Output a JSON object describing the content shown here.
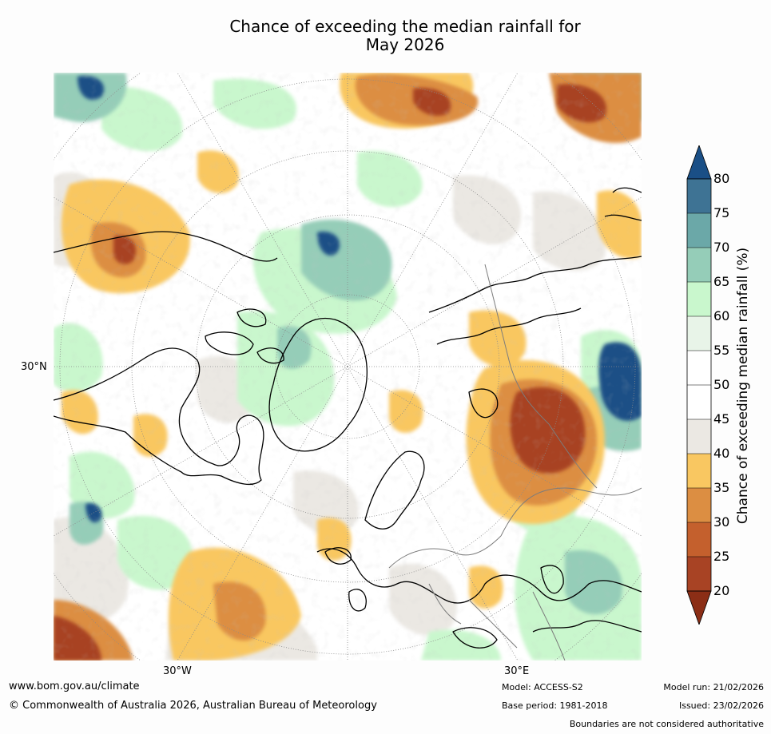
{
  "title_line1": "Chance of exceeding the median rainfall for",
  "title_line2": "May 2026",
  "map": {
    "lat_label": "30°N",
    "lon_label_west": "30°W",
    "lon_label_east": "30°E"
  },
  "colorbar": {
    "label": "Chance of exceeding median rainfall (%)",
    "ticks": [
      "20",
      "25",
      "30",
      "35",
      "40",
      "45",
      "50",
      "55",
      "60",
      "65",
      "70",
      "75",
      "80"
    ],
    "colors": {
      "below_20": "#8b2e16",
      "20_25": "#a84324",
      "25_30": "#c4602d",
      "30_35": "#dc8e42",
      "35_40": "#f9c761",
      "40_45": "#ebe8e3",
      "45_50": "#ffffff",
      "50_55": "#ffffff",
      "55_60": "#e8f4e8",
      "60_65": "#c9f7cd",
      "65_70": "#95cdb8",
      "70_75": "#6ba8a8",
      "75_80": "#3e7394",
      "above_80": "#1a4f86"
    }
  },
  "footer": {
    "website": "www.bom.gov.au/climate",
    "copyright": "© Commonwealth of Australia 2026, Australian Bureau of Meteorology",
    "model": "Model: ACCESS-S2",
    "base_period": "Base period: 1981-2018",
    "model_run": "Model run: 21/02/2026",
    "issued": "Issued: 23/02/2026",
    "disclaimer": "Boundaries are not considered authoritative"
  }
}
